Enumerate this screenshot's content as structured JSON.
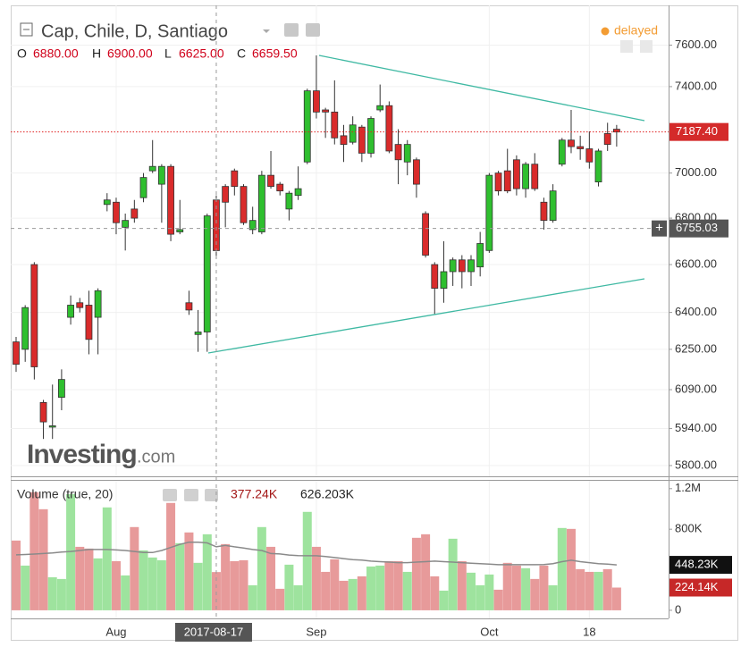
{
  "chart_data": {
    "type": "candlestick",
    "title": "Cap, Chile, D, Santiago",
    "status": "delayed",
    "logo": "Investing",
    "logo_suffix": ".com",
    "log_scale": true,
    "grid": true,
    "up_color": "#2fbf2f",
    "down_color": "#d92b2b",
    "legend": {
      "open_label": "O",
      "open": {
        "value": 6880,
        "label": "6880.00"
      },
      "high_label": "H",
      "high": {
        "value": 6900,
        "label": "6900.00"
      },
      "low_label": "L",
      "low": {
        "value": 6625,
        "label": "6625.00"
      },
      "close_label": "C",
      "close": {
        "value": 6659.5,
        "label": "6659.50"
      }
    },
    "categories": [
      null,
      null,
      null,
      null,
      null,
      null,
      null,
      null,
      null,
      null,
      null,
      "Aug",
      null,
      null,
      null,
      null,
      null,
      null,
      null,
      null,
      null,
      null,
      null,
      null,
      null,
      null,
      null,
      null,
      null,
      null,
      null,
      null,
      null,
      "Sep",
      null,
      null,
      null,
      null,
      null,
      null,
      null,
      null,
      null,
      null,
      null,
      null,
      null,
      null,
      null,
      null,
      null,
      null,
      "Oct",
      null,
      null,
      null,
      null,
      null,
      null,
      null,
      null,
      null,
      null,
      "18",
      null,
      null,
      null
    ],
    "open": [
      6280,
      6250,
      6600,
      6040,
      5945,
      6060,
      6380,
      6440,
      6430,
      6380,
      6860,
      6870,
      6760,
      6840,
      6890,
      7010,
      6950,
      7030,
      6740,
      6440,
      6310,
      6320,
      6880,
      6940,
      7010,
      6940,
      6750,
      6740,
      6990,
      6950,
      6840,
      6900,
      7050,
      7380,
      7290,
      7280,
      7170,
      7140,
      7210,
      7090,
      7290,
      7310,
      7130,
      7050,
      7060,
      6820,
      6600,
      6500,
      6570,
      6620,
      6570,
      6590,
      6660,
      7000,
      7010,
      7060,
      6930,
      7040,
      6870,
      6790,
      7040,
      7150,
      7120,
      7110,
      6960,
      7180,
      7200
    ],
    "high": [
      6300,
      6430,
      6610,
      6050,
      6110,
      6170,
      6470,
      6460,
      6490,
      6500,
      6910,
      6890,
      6820,
      6880,
      7000,
      7150,
      7040,
      7040,
      6880,
      6490,
      6410,
      6820,
      6900,
      6950,
      7020,
      6950,
      6850,
      7010,
      7100,
      6960,
      6920,
      7030,
      7390,
      7550,
      7300,
      7430,
      7220,
      7260,
      7220,
      7260,
      7410,
      7330,
      7200,
      7150,
      7070,
      6830,
      6610,
      6700,
      6630,
      6640,
      6640,
      6740,
      7000,
      7010,
      7110,
      7080,
      7050,
      7090,
      6890,
      6950,
      7160,
      7290,
      7170,
      7190,
      7110,
      7230,
      7220
    ],
    "low": [
      6160,
      6200,
      6130,
      5900,
      5900,
      6010,
      6350,
      6400,
      6230,
      6230,
      6830,
      6730,
      6660,
      6780,
      6870,
      7000,
      6780,
      6700,
      6730,
      6390,
      6240,
      6240,
      6625,
      6760,
      6900,
      6770,
      6730,
      6730,
      6930,
      6900,
      6790,
      6880,
      7040,
      7250,
      7160,
      7130,
      7050,
      7130,
      7050,
      7070,
      7280,
      7090,
      6950,
      6990,
      6890,
      6630,
      6390,
      6440,
      6510,
      6500,
      6510,
      6550,
      6650,
      6900,
      6910,
      6900,
      6890,
      6920,
      6750,
      6780,
      7030,
      7090,
      7060,
      7020,
      6940,
      7100,
      7120
    ],
    "close": [
      6190,
      6420,
      6180,
      5965,
      5950,
      6130,
      6430,
      6420,
      6290,
      6490,
      6880,
      6780,
      6790,
      6800,
      6980,
      7030,
      7030,
      6730,
      6750,
      6410,
      6320,
      6810,
      6659.5,
      6870,
      6940,
      6780,
      6790,
      6990,
      6940,
      6920,
      6910,
      6930,
      7380,
      7280,
      7280,
      7160,
      7130,
      7220,
      7090,
      7250,
      7310,
      7100,
      7060,
      7130,
      6950,
      6640,
      6500,
      6570,
      6620,
      6570,
      6620,
      6690,
      6990,
      6920,
      6920,
      6930,
      7040,
      6930,
      6790,
      6920,
      7150,
      7120,
      7110,
      7050,
      7100,
      7130,
      7187.4
    ],
    "ylim": [
      5760,
      7770
    ],
    "yticks": [
      {
        "value": 7600,
        "label": "7600.00"
      },
      {
        "value": 7400,
        "label": "7400.00"
      },
      {
        "value": 7000,
        "label": "7000.00"
      },
      {
        "value": 6800,
        "label": "6800.00"
      },
      {
        "value": 6600,
        "label": "6600.00"
      },
      {
        "value": 6400,
        "label": "6400.00"
      },
      {
        "value": 6250,
        "label": "6250.00"
      },
      {
        "value": 6090,
        "label": "6090.00"
      },
      {
        "value": 5940,
        "label": "5940.00"
      },
      {
        "value": 5800,
        "label": "5800.00"
      }
    ],
    "last_price": {
      "value": 7187.4,
      "label": "7187.40"
    },
    "crosshair": {
      "index": 22,
      "date": "2017-08-17",
      "price": 6755.03,
      "price_label": "+"
    },
    "volume": {
      "title": "Volume (true, 20)",
      "legend_volume": {
        "value": 377240,
        "label": "377.24K"
      },
      "legend_ma": {
        "value": 626203,
        "label": "626.203K"
      },
      "values": [
        688000,
        441000,
        1165000,
        997000,
        326000,
        309000,
        1147000,
        626000,
        609000,
        512000,
        1015000,
        485000,
        344000,
        821000,
        591000,
        521000,
        494000,
        1059000,
        662000,
        768000,
        468000,
        750000,
        377240,
        653000,
        485000,
        494000,
        247000,
        821000,
        626000,
        212000,
        450000,
        247000,
        971000,
        626000,
        379000,
        503000,
        291000,
        309000,
        335000,
        432000,
        441000,
        485000,
        485000,
        379000,
        715000,
        750000,
        335000,
        194000,
        706000,
        485000,
        371000,
        247000,
        353000,
        203000,
        468000,
        441000,
        415000,
        309000,
        441000,
        247000,
        812000,
        803000,
        406000,
        379000,
        379000,
        406000,
        224140
      ],
      "ma": [
        547000,
        550000,
        555000,
        560000,
        565000,
        574000,
        580000,
        590000,
        600000,
        600000,
        600000,
        595000,
        590000,
        580000,
        570000,
        570000,
        590000,
        620000,
        650000,
        671000,
        671000,
        665000,
        626203,
        640000,
        626000,
        615000,
        600000,
        590000,
        560000,
        556000,
        545000,
        540000,
        538000,
        538000,
        530000,
        520000,
        510000,
        500000,
        495000,
        485000,
        480000,
        475000,
        470000,
        470000,
        475000,
        480000,
        485000,
        480000,
        475000,
        470000,
        465000,
        460000,
        455000,
        450000,
        450000,
        450000,
        450000,
        450000,
        452000,
        460000,
        480000,
        494000,
        480000,
        470000,
        460000,
        455000,
        448230
      ],
      "ma_color": "#8a8a8a",
      "up_color": "#9ee39e",
      "down_color": "#e79a9a",
      "ylim": [
        -80000,
        1260000
      ],
      "yticks": [
        {
          "value": 1200000,
          "label": "1.2M"
        },
        {
          "value": 800000,
          "label": "800K"
        },
        0
      ],
      "ma_last": {
        "value": 448230,
        "label": "448.23K"
      },
      "last": {
        "value": 224140,
        "label": "224.14K"
      }
    }
  }
}
